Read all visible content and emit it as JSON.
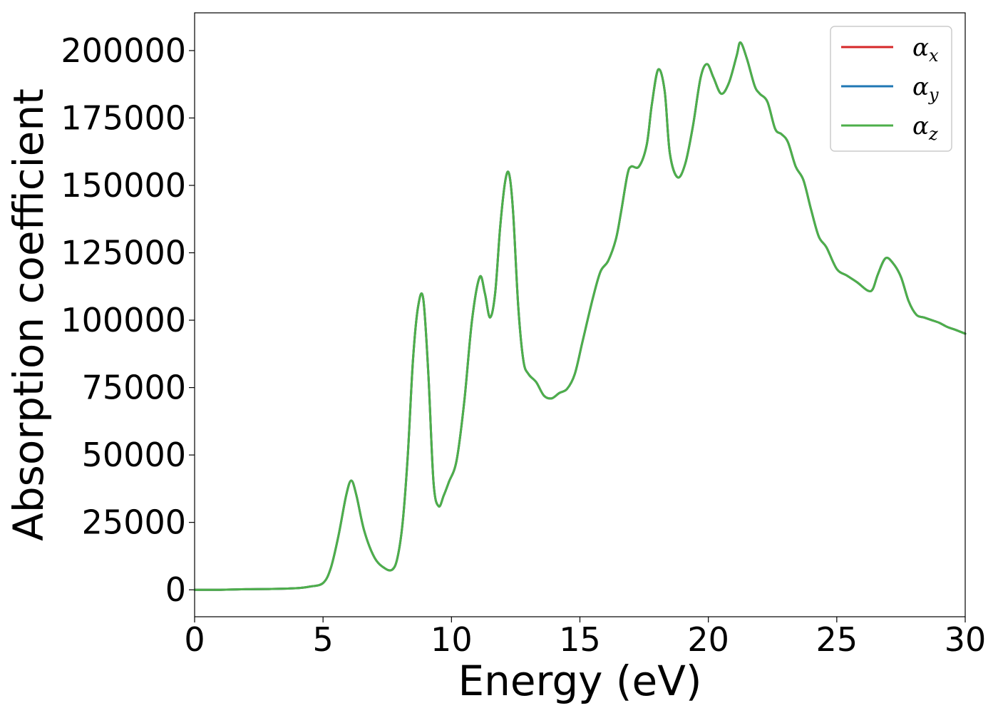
{
  "chart_data": {
    "type": "line",
    "title": "",
    "xlabel": "Energy (eV)",
    "ylabel": "Absorption coefficient",
    "xlim": [
      0,
      30
    ],
    "ylim": [
      -10000,
      214000
    ],
    "xticks": [
      0,
      5,
      10,
      15,
      20,
      25,
      30
    ],
    "xtick_labels": [
      "0",
      "5",
      "10",
      "15",
      "20",
      "25",
      "30"
    ],
    "yticks": [
      0,
      25000,
      50000,
      75000,
      100000,
      125000,
      150000,
      175000,
      200000
    ],
    "ytick_labels": [
      "0",
      "25000",
      "50000",
      "75000",
      "100000",
      "125000",
      "150000",
      "175000",
      "200000"
    ],
    "grid": false,
    "legend_position": "top-right",
    "series": [
      {
        "name": "α",
        "sub": "x",
        "color": "#d62728"
      },
      {
        "name": "α",
        "sub": "y",
        "color": "#1f77b4"
      },
      {
        "name": "α",
        "sub": "z",
        "color": "#4daf4a"
      }
    ],
    "x": [
      0,
      1,
      2,
      3,
      4,
      4.5,
      5,
      5.3,
      5.6,
      5.9,
      6.1,
      6.3,
      6.6,
      7.0,
      7.4,
      7.7,
      7.9,
      8.1,
      8.3,
      8.5,
      8.7,
      8.9,
      9.1,
      9.3,
      9.5,
      9.7,
      9.9,
      10.2,
      10.5,
      10.8,
      11.1,
      11.3,
      11.5,
      11.7,
      11.9,
      12.1,
      12.25,
      12.4,
      12.6,
      12.8,
      13.0,
      13.3,
      13.6,
      13.9,
      14.2,
      14.5,
      14.8,
      15.1,
      15.5,
      15.8,
      16.1,
      16.4,
      16.6,
      16.85,
      17.0,
      17.3,
      17.6,
      17.8,
      18.05,
      18.3,
      18.5,
      18.8,
      19.1,
      19.4,
      19.7,
      19.95,
      20.2,
      20.5,
      20.8,
      21.1,
      21.25,
      21.5,
      21.8,
      22.0,
      22.3,
      22.6,
      22.85,
      23.1,
      23.4,
      23.7,
      24.0,
      24.3,
      24.6,
      25.0,
      25.4,
      25.8,
      26.2,
      26.4,
      26.6,
      26.9,
      27.2,
      27.5,
      27.8,
      28.1,
      28.4,
      28.7,
      29.0,
      29.3,
      29.6,
      30.0
    ],
    "y": [
      0,
      0,
      200,
      300,
      600,
      1200,
      2500,
      8000,
      20000,
      35000,
      40500,
      35000,
      22000,
      12000,
      8000,
      7500,
      12000,
      25000,
      50000,
      85000,
      105000,
      108000,
      80000,
      40000,
      31000,
      35000,
      40000,
      48000,
      70000,
      100000,
      116000,
      110000,
      101000,
      110000,
      135000,
      152000,
      154000,
      140000,
      105000,
      85000,
      80000,
      77000,
      72000,
      71000,
      73000,
      74500,
      80000,
      92000,
      108000,
      118000,
      122000,
      130000,
      140000,
      154000,
      157000,
      157000,
      165000,
      180000,
      193000,
      185000,
      162000,
      153000,
      158000,
      172000,
      190000,
      195000,
      190000,
      184000,
      188000,
      198000,
      203000,
      197000,
      187000,
      184000,
      181000,
      171000,
      169000,
      166000,
      157000,
      152000,
      141000,
      131000,
      127000,
      119000,
      116500,
      114000,
      111000,
      111500,
      117000,
      123000,
      121000,
      116000,
      107000,
      102000,
      101000,
      100000,
      99000,
      97500,
      96500,
      95000
    ]
  }
}
